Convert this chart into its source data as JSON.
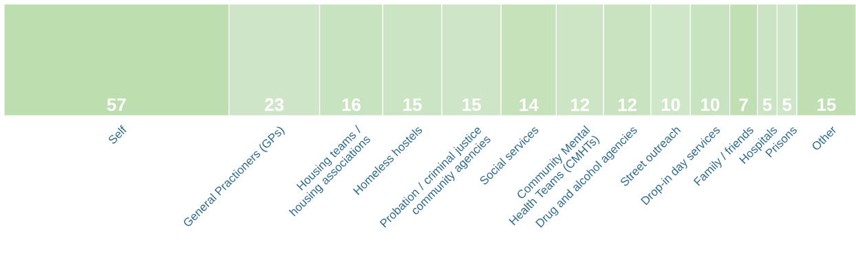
{
  "chart_data": {
    "type": "other",
    "categories": [
      "Self",
      "General Practioners (GPs)",
      "Housing teams / housing associations",
      "Homeless hostels",
      "Probation / criminal justice community agencies",
      "Social services",
      "Community Mental Health Teams (CMHTs)",
      "Drug and alcohol agencies",
      "Street outreach",
      "Drop-in day services",
      "Family / friends",
      "Hospitals",
      "Prisons",
      "Other"
    ],
    "values": [
      57,
      23,
      16,
      15,
      15,
      14,
      12,
      12,
      10,
      10,
      7,
      5,
      5,
      15
    ],
    "colors": [
      "#bddfb0",
      "#cfe5c7",
      "#c8e3c0",
      "#cbe4c3",
      "#cfe5c7",
      "#c5e2bb",
      "#cde4c5",
      "#c9e3c1",
      "#d0e6c8",
      "#c8e3c0",
      "#c0e0b4",
      "#cbe4c3",
      "#cfe5c7",
      "#bfdfb2"
    ],
    "data_labels": true
  }
}
